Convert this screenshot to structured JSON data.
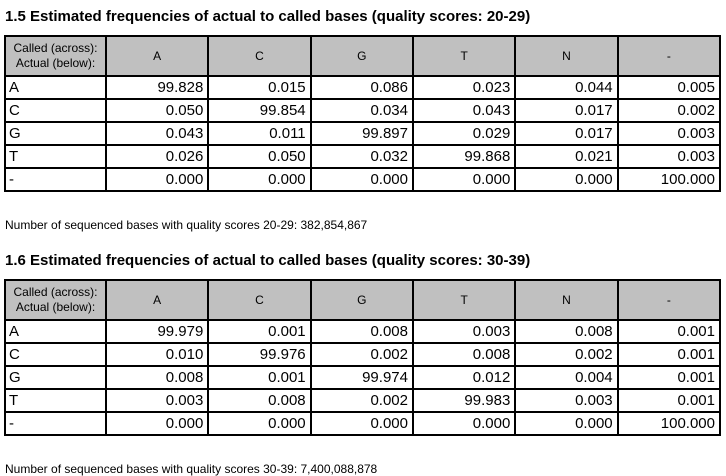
{
  "colors": {
    "page_bg": "#ffffff",
    "header_bg": "#c0c0c0",
    "border": "#000000",
    "text": "#000000"
  },
  "sections": [
    {
      "title": "1.5 Estimated frequencies of actual to called bases (quality scores: 20-29)",
      "corner": {
        "line1": "Called (across):",
        "line2": "Actual (below):"
      },
      "columns": [
        "A",
        "C",
        "G",
        "T",
        "N",
        "-"
      ],
      "rows": [
        {
          "label": "A",
          "values": [
            "99.828",
            "0.015",
            "0.086",
            "0.023",
            "0.044",
            "0.005"
          ]
        },
        {
          "label": "C",
          "values": [
            "0.050",
            "99.854",
            "0.034",
            "0.043",
            "0.017",
            "0.002"
          ]
        },
        {
          "label": "G",
          "values": [
            "0.043",
            "0.011",
            "99.897",
            "0.029",
            "0.017",
            "0.003"
          ]
        },
        {
          "label": "T",
          "values": [
            "0.026",
            "0.050",
            "0.032",
            "99.868",
            "0.021",
            "0.003"
          ]
        },
        {
          "label": "-",
          "values": [
            "0.000",
            "0.000",
            "0.000",
            "0.000",
            "0.000",
            "100.000"
          ]
        }
      ],
      "caption": "Number of sequenced bases with quality scores 20-29: 382,854,867"
    },
    {
      "title": "1.6 Estimated frequencies of actual to called bases (quality scores: 30-39)",
      "corner": {
        "line1": "Called (across):",
        "line2": "Actual (below):"
      },
      "columns": [
        "A",
        "C",
        "G",
        "T",
        "N",
        "-"
      ],
      "rows": [
        {
          "label": "A",
          "values": [
            "99.979",
            "0.001",
            "0.008",
            "0.003",
            "0.008",
            "0.001"
          ]
        },
        {
          "label": "C",
          "values": [
            "0.010",
            "99.976",
            "0.002",
            "0.008",
            "0.002",
            "0.001"
          ]
        },
        {
          "label": "G",
          "values": [
            "0.008",
            "0.001",
            "99.974",
            "0.012",
            "0.004",
            "0.001"
          ]
        },
        {
          "label": "T",
          "values": [
            "0.003",
            "0.008",
            "0.002",
            "99.983",
            "0.003",
            "0.001"
          ]
        },
        {
          "label": "-",
          "values": [
            "0.000",
            "0.000",
            "0.000",
            "0.000",
            "0.000",
            "100.000"
          ]
        }
      ],
      "caption": "Number of sequenced bases with quality scores 30-39: 7,400,088,878"
    }
  ]
}
